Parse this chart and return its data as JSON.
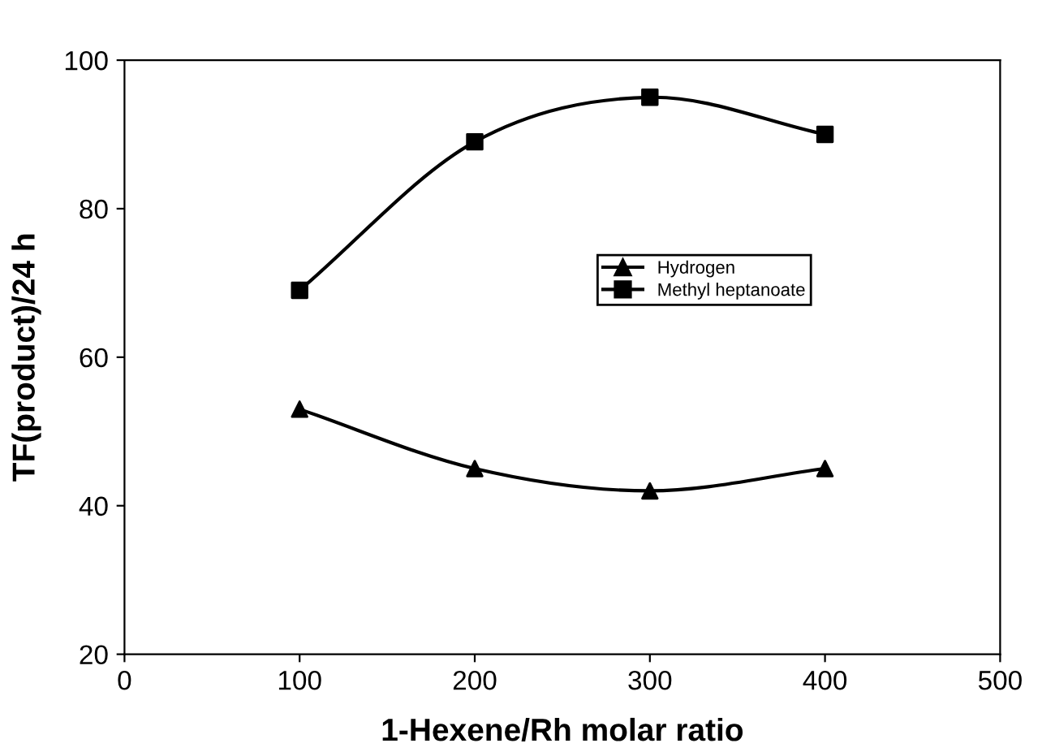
{
  "chart_data": {
    "type": "line",
    "xlabel": "1-Hexene/Rh molar ratio",
    "ylabel": "TF(product)/24 h",
    "x": [
      100,
      200,
      300,
      400
    ],
    "series": [
      {
        "name": "Hydrogen",
        "color": "#000000",
        "marker": "triangle",
        "values": [
          53,
          45,
          42,
          45
        ]
      },
      {
        "name": "Methyl heptanoate",
        "color": "#000000",
        "marker": "square",
        "values": [
          69,
          89,
          95,
          90
        ]
      }
    ],
    "xlim": [
      0,
      500
    ],
    "xticks": [
      0,
      100,
      200,
      300,
      400,
      {
        "value": 500,
        "label": "500"
      }
    ],
    "ylim": [
      20,
      100
    ],
    "yticks": [
      20,
      40,
      60,
      80,
      100
    ],
    "grid": false,
    "legend": "right",
    "line_style": "solid"
  }
}
